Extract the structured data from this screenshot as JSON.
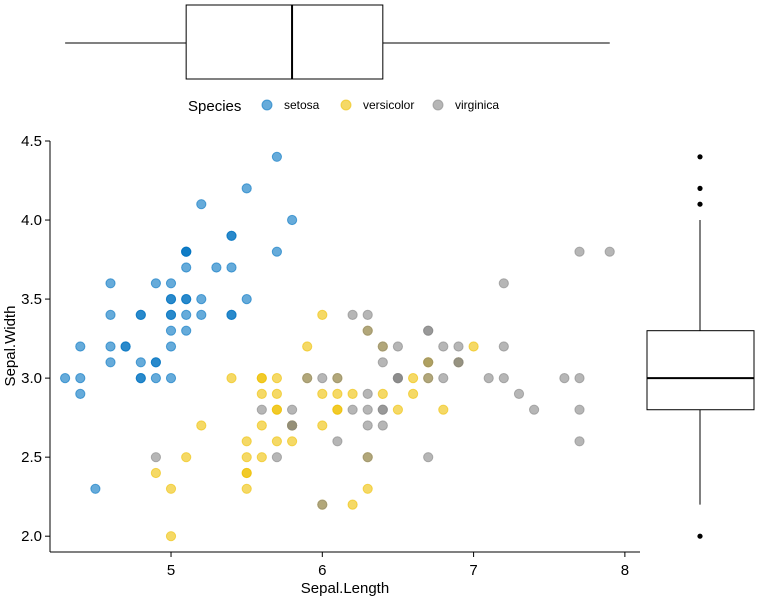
{
  "chart_data": {
    "type": "scatter",
    "xlabel": "Sepal.Length",
    "ylabel": "Sepal.Width",
    "xlim": [
      4.2,
      8.1
    ],
    "ylim": [
      1.9,
      4.5
    ],
    "x_ticks": [
      5,
      6,
      7,
      8
    ],
    "x_tick_labels": [
      "5",
      "6",
      "7",
      "8"
    ],
    "y_ticks": [
      2.0,
      2.5,
      3.0,
      3.5,
      4.0,
      4.5
    ],
    "y_tick_labels": [
      "2.0",
      "2.5",
      "3.0",
      "3.5",
      "4.0",
      "4.5"
    ],
    "grid": false,
    "legend": {
      "title": "Species",
      "position": "top",
      "entries": [
        {
          "label": "setosa",
          "color": "#0073C2"
        },
        {
          "label": "versicolor",
          "color": "#EFC000"
        },
        {
          "label": "virginica",
          "color": "#868686"
        }
      ]
    },
    "series": [
      {
        "name": "setosa",
        "color": "#0073C2",
        "points": [
          [
            5.1,
            3.5
          ],
          [
            4.9,
            3.0
          ],
          [
            4.7,
            3.2
          ],
          [
            4.6,
            3.1
          ],
          [
            5.0,
            3.6
          ],
          [
            5.4,
            3.9
          ],
          [
            4.6,
            3.4
          ],
          [
            5.0,
            3.4
          ],
          [
            4.4,
            2.9
          ],
          [
            4.9,
            3.1
          ],
          [
            5.4,
            3.7
          ],
          [
            4.8,
            3.4
          ],
          [
            4.8,
            3.0
          ],
          [
            4.3,
            3.0
          ],
          [
            5.8,
            4.0
          ],
          [
            5.7,
            4.4
          ],
          [
            5.4,
            3.9
          ],
          [
            5.1,
            3.5
          ],
          [
            5.7,
            3.8
          ],
          [
            5.1,
            3.8
          ],
          [
            5.4,
            3.4
          ],
          [
            5.1,
            3.7
          ],
          [
            4.6,
            3.6
          ],
          [
            5.1,
            3.3
          ],
          [
            4.8,
            3.4
          ],
          [
            5.0,
            3.0
          ],
          [
            5.0,
            3.4
          ],
          [
            5.2,
            3.5
          ],
          [
            5.2,
            3.4
          ],
          [
            4.7,
            3.2
          ],
          [
            4.8,
            3.1
          ],
          [
            5.4,
            3.4
          ],
          [
            5.2,
            4.1
          ],
          [
            5.5,
            4.2
          ],
          [
            4.9,
            3.1
          ],
          [
            5.0,
            3.2
          ],
          [
            5.5,
            3.5
          ],
          [
            4.9,
            3.6
          ],
          [
            4.4,
            3.0
          ],
          [
            5.1,
            3.4
          ],
          [
            5.0,
            3.5
          ],
          [
            4.5,
            2.3
          ],
          [
            4.4,
            3.2
          ],
          [
            5.0,
            3.5
          ],
          [
            5.1,
            3.8
          ],
          [
            4.8,
            3.0
          ],
          [
            5.1,
            3.8
          ],
          [
            4.6,
            3.2
          ],
          [
            5.3,
            3.7
          ],
          [
            5.0,
            3.3
          ]
        ]
      },
      {
        "name": "versicolor",
        "color": "#EFC000",
        "points": [
          [
            7.0,
            3.2
          ],
          [
            6.4,
            3.2
          ],
          [
            6.9,
            3.1
          ],
          [
            5.5,
            2.3
          ],
          [
            6.5,
            2.8
          ],
          [
            5.7,
            2.8
          ],
          [
            6.3,
            3.3
          ],
          [
            4.9,
            2.4
          ],
          [
            6.6,
            2.9
          ],
          [
            5.2,
            2.7
          ],
          [
            5.0,
            2.0
          ],
          [
            5.9,
            3.0
          ],
          [
            6.0,
            2.2
          ],
          [
            6.1,
            2.9
          ],
          [
            5.6,
            2.9
          ],
          [
            6.7,
            3.1
          ],
          [
            5.6,
            3.0
          ],
          [
            5.8,
            2.7
          ],
          [
            6.2,
            2.2
          ],
          [
            5.6,
            2.5
          ],
          [
            5.9,
            3.2
          ],
          [
            6.1,
            2.8
          ],
          [
            6.3,
            2.5
          ],
          [
            6.1,
            2.8
          ],
          [
            6.4,
            2.9
          ],
          [
            6.6,
            3.0
          ],
          [
            6.8,
            2.8
          ],
          [
            6.7,
            3.0
          ],
          [
            6.0,
            2.9
          ],
          [
            5.7,
            2.6
          ],
          [
            5.5,
            2.4
          ],
          [
            5.5,
            2.4
          ],
          [
            5.8,
            2.7
          ],
          [
            6.0,
            2.7
          ],
          [
            5.4,
            3.0
          ],
          [
            6.0,
            3.4
          ],
          [
            6.7,
            3.1
          ],
          [
            6.3,
            2.3
          ],
          [
            5.6,
            3.0
          ],
          [
            5.5,
            2.5
          ],
          [
            5.5,
            2.6
          ],
          [
            6.1,
            3.0
          ],
          [
            5.8,
            2.6
          ],
          [
            5.0,
            2.3
          ],
          [
            5.6,
            2.7
          ],
          [
            5.7,
            3.0
          ],
          [
            5.7,
            2.9
          ],
          [
            6.2,
            2.9
          ],
          [
            5.1,
            2.5
          ],
          [
            5.7,
            2.8
          ]
        ]
      },
      {
        "name": "virginica",
        "color": "#868686",
        "points": [
          [
            6.3,
            3.3
          ],
          [
            5.8,
            2.7
          ],
          [
            7.1,
            3.0
          ],
          [
            6.3,
            2.9
          ],
          [
            6.5,
            3.0
          ],
          [
            7.6,
            3.0
          ],
          [
            4.9,
            2.5
          ],
          [
            7.3,
            2.9
          ],
          [
            6.7,
            2.5
          ],
          [
            7.2,
            3.6
          ],
          [
            6.5,
            3.2
          ],
          [
            6.4,
            2.7
          ],
          [
            6.8,
            3.0
          ],
          [
            5.7,
            2.5
          ],
          [
            5.8,
            2.8
          ],
          [
            6.4,
            3.2
          ],
          [
            6.5,
            3.0
          ],
          [
            7.7,
            3.8
          ],
          [
            7.7,
            2.6
          ],
          [
            6.0,
            2.2
          ],
          [
            6.9,
            3.2
          ],
          [
            5.6,
            2.8
          ],
          [
            7.7,
            2.8
          ],
          [
            6.3,
            2.7
          ],
          [
            6.7,
            3.3
          ],
          [
            7.2,
            3.2
          ],
          [
            6.2,
            2.8
          ],
          [
            6.1,
            3.0
          ],
          [
            6.4,
            2.8
          ],
          [
            7.2,
            3.0
          ],
          [
            7.4,
            2.8
          ],
          [
            7.9,
            3.8
          ],
          [
            6.4,
            2.8
          ],
          [
            6.3,
            2.8
          ],
          [
            6.1,
            2.6
          ],
          [
            7.7,
            3.0
          ],
          [
            6.3,
            3.4
          ],
          [
            6.4,
            3.1
          ],
          [
            6.0,
            3.0
          ],
          [
            6.9,
            3.1
          ],
          [
            6.7,
            3.1
          ],
          [
            6.9,
            3.1
          ],
          [
            5.8,
            2.7
          ],
          [
            6.8,
            3.2
          ],
          [
            6.7,
            3.3
          ],
          [
            6.7,
            3.0
          ],
          [
            6.3,
            2.5
          ],
          [
            6.5,
            3.0
          ],
          [
            6.2,
            3.4
          ],
          [
            5.9,
            3.0
          ]
        ]
      }
    ],
    "marginal_boxplots": {
      "x": {
        "variable": "Sepal.Length",
        "whisker_low": 4.3,
        "q1": 5.1,
        "median": 5.8,
        "q3": 6.4,
        "whisker_high": 7.9,
        "outliers": []
      },
      "y": {
        "variable": "Sepal.Width",
        "whisker_low": 2.2,
        "q1": 2.8,
        "median": 3.0,
        "q3": 3.3,
        "whisker_high": 4.0,
        "outliers": [
          4.4,
          4.2,
          4.1,
          2.0
        ]
      }
    }
  }
}
